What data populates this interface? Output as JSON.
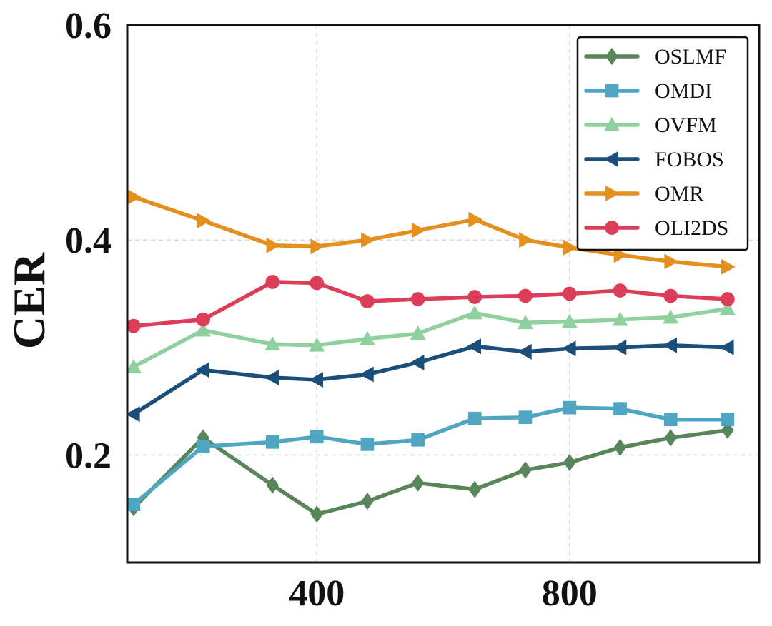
{
  "chart_data": {
    "type": "line",
    "title": "",
    "xlabel": "",
    "ylabel": "CER",
    "xlim": [
      100,
      1100
    ],
    "ylim": [
      0.1,
      0.6
    ],
    "xticks": [
      400,
      800
    ],
    "xtick_labels": [
      "400",
      "800"
    ],
    "yticks": [
      0.2,
      0.4,
      0.6
    ],
    "ytick_labels": [
      "0.2",
      "0.4",
      "0.6"
    ],
    "grid": true,
    "legend_position": "top-right",
    "x": [
      110,
      220,
      330,
      400,
      480,
      560,
      650,
      730,
      800,
      880,
      960,
      1050
    ],
    "series": [
      {
        "name": "OSLMF",
        "color": "#58855a",
        "marker": "diamond",
        "values": [
          0.151,
          0.216,
          0.172,
          0.145,
          0.157,
          0.174,
          0.168,
          0.186,
          0.193,
          0.207,
          0.216,
          0.223
        ]
      },
      {
        "name": "OMDI",
        "color": "#4fa6c2",
        "marker": "square",
        "values": [
          0.154,
          0.208,
          0.212,
          0.217,
          0.21,
          0.214,
          0.234,
          0.235,
          0.244,
          0.243,
          0.233,
          0.233
        ]
      },
      {
        "name": "OVFM",
        "color": "#8fd19e",
        "marker": "triangle-up",
        "values": [
          0.282,
          0.316,
          0.303,
          0.302,
          0.308,
          0.313,
          0.332,
          0.323,
          0.324,
          0.326,
          0.328,
          0.336
        ]
      },
      {
        "name": "FOBOS",
        "color": "#1c4e7a",
        "marker": "triangle-left",
        "values": [
          0.238,
          0.279,
          0.272,
          0.27,
          0.275,
          0.286,
          0.301,
          0.296,
          0.299,
          0.3,
          0.302,
          0.3
        ]
      },
      {
        "name": "OMR",
        "color": "#e48f1e",
        "marker": "triangle-right",
        "values": [
          0.44,
          0.418,
          0.395,
          0.394,
          0.4,
          0.409,
          0.419,
          0.4,
          0.393,
          0.386,
          0.38,
          0.375
        ]
      },
      {
        "name": "OLI2DS",
        "color": "#dc3d58",
        "marker": "circle",
        "values": [
          0.32,
          0.326,
          0.361,
          0.36,
          0.343,
          0.345,
          0.347,
          0.348,
          0.35,
          0.353,
          0.348,
          0.345
        ]
      }
    ]
  }
}
